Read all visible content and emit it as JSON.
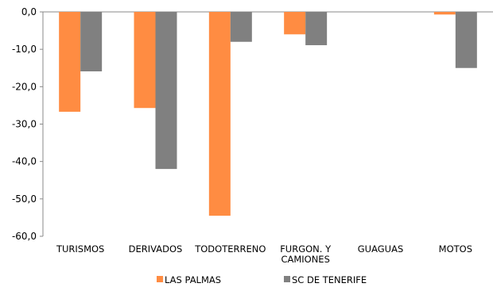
{
  "chart_data": {
    "type": "bar",
    "title": "",
    "xlabel": "",
    "ylabel": "",
    "categories": [
      [
        "TURISMOS"
      ],
      [
        "DERIVADOS"
      ],
      [
        "TODOTERRENO"
      ],
      [
        "FURGON. Y",
        "CAMIONES"
      ],
      [
        "GUAGUAS"
      ],
      [
        "MOTOS"
      ]
    ],
    "series": [
      {
        "name": "LAS PALMAS",
        "color": "#ff8c42",
        "values": [
          -26.7,
          -25.7,
          -54.5,
          -6.0,
          0.0,
          -0.7
        ]
      },
      {
        "name": "SC DE TENERIFE",
        "color": "#808080",
        "values": [
          -15.9,
          -42.0,
          -8.0,
          -8.9,
          0.0,
          -15.0
        ]
      }
    ],
    "ylim": [
      -60,
      0
    ],
    "yticks": [
      0,
      -10,
      -20,
      -30,
      -40,
      -50,
      -60
    ],
    "ytick_labels": [
      "0,0",
      "-10,0",
      "-20,0",
      "-30,0",
      "-40,0",
      "-50,0",
      "-60,0"
    ],
    "grid": false,
    "legend_position": "bottom"
  }
}
